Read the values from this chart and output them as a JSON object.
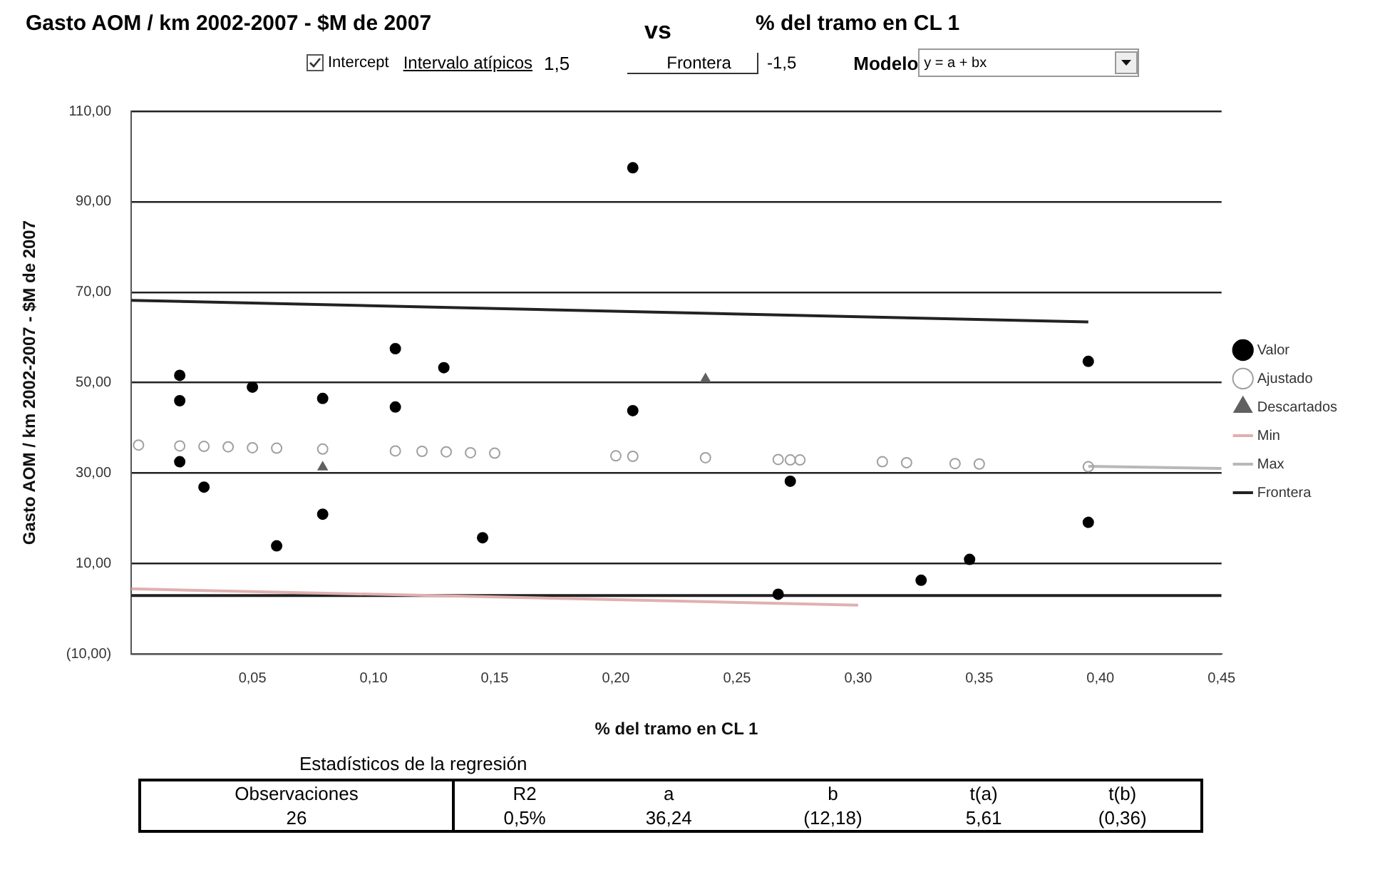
{
  "chart_data": {
    "type": "scatter",
    "title": "Gasto AOM / km 2002-2007 - $M de 2007",
    "xlabel": "% del tramo en CL 1",
    "ylabel": "Gasto AOM / km 2002-2007 - $M de 2007",
    "annotations": [
      "vs",
      "% del tramo en CL 1",
      "Intercept",
      "Intervalo atípicos",
      "1,5",
      "Frontera",
      "-1,5",
      "Modelo",
      "y = a + bx",
      "Estadísticos de la regresión",
      "Observaciones",
      "R2",
      "a",
      "b",
      "t(a)",
      "t(b)",
      "26",
      "0,5%",
      "36,24",
      "(12,18)",
      "5,61",
      "(0,36)"
    ],
    "xlim": [
      0,
      0.45
    ],
    "xticks": [
      {
        "value": 0.05,
        "label": "0,05"
      },
      {
        "value": 0.1,
        "label": "0,10"
      },
      {
        "value": 0.15,
        "label": "0,15"
      },
      {
        "value": 0.2,
        "label": "0,20"
      },
      {
        "value": 0.25,
        "label": "0,25"
      },
      {
        "value": 0.3,
        "label": "0,30"
      },
      {
        "value": 0.35,
        "label": "0,35"
      },
      {
        "value": 0.4,
        "label": "0,40"
      },
      {
        "value": 0.45,
        "label": "0,45"
      }
    ],
    "ylim": [
      -10,
      110
    ],
    "yticks": [
      {
        "value": -10,
        "label": "(10,00)"
      },
      {
        "value": 10,
        "label": "10,00"
      },
      {
        "value": 30,
        "label": "30,00"
      },
      {
        "value": 50,
        "label": "50,00"
      },
      {
        "value": 70,
        "label": "70,00"
      },
      {
        "value": 90,
        "label": "90,00"
      },
      {
        "value": 110,
        "label": "110,00"
      }
    ],
    "grid": "y",
    "legend": "right",
    "series": [
      {
        "name": "Valor",
        "color": "#000000",
        "marker": "circle",
        "x": [
          0.02,
          0.02,
          0.02,
          0.03,
          0.05,
          0.06,
          0.079,
          0.079,
          0.109,
          0.109,
          0.129,
          0.145,
          0.207,
          0.207,
          0.272,
          0.267,
          0.326,
          0.346,
          0.395,
          0.395
        ],
        "values": [
          51.6,
          46.0,
          32.5,
          26.9,
          49.0,
          13.9,
          46.5,
          20.9,
          57.5,
          44.6,
          53.3,
          15.7,
          97.5,
          43.8,
          28.2,
          3.2,
          6.3,
          10.9,
          54.7,
          19.1
        ]
      },
      {
        "name": "Ajustado",
        "color": "#a0a0a0",
        "marker": "circle",
        "x": [
          0.003,
          0.02,
          0.03,
          0.04,
          0.05,
          0.06,
          0.079,
          0.109,
          0.12,
          0.13,
          0.14,
          0.15,
          0.2,
          0.207,
          0.237,
          0.267,
          0.272,
          0.276,
          0.31,
          0.32,
          0.34,
          0.35,
          0.395
        ],
        "values": [
          36.2,
          36.0,
          35.9,
          35.8,
          35.6,
          35.5,
          35.3,
          34.9,
          34.8,
          34.7,
          34.5,
          34.4,
          33.8,
          33.7,
          33.4,
          33.0,
          32.9,
          32.9,
          32.5,
          32.3,
          32.1,
          32.0,
          31.4
        ]
      },
      {
        "name": "Descartados",
        "color": "#606060",
        "marker": "triangle",
        "x": [
          0.079,
          0.237
        ],
        "values": [
          31.3,
          50.8
        ]
      },
      {
        "name": "Min",
        "type": "line",
        "color": "#e0b0b0",
        "x": [
          0.0,
          0.3
        ],
        "values": [
          4.4,
          0.8
        ]
      },
      {
        "name": "Max",
        "type": "line",
        "color": "#b8b8b8",
        "x": [
          0.395,
          0.45
        ],
        "values": [
          31.5,
          31.0
        ]
      },
      {
        "name": "Frontera",
        "type": "line",
        "color": "#222222",
        "x": [
          0.0,
          0.395,
          null,
          0.0,
          0.45
        ],
        "values": [
          68.2,
          63.4,
          null,
          2.9,
          2.9
        ]
      }
    ]
  }
}
